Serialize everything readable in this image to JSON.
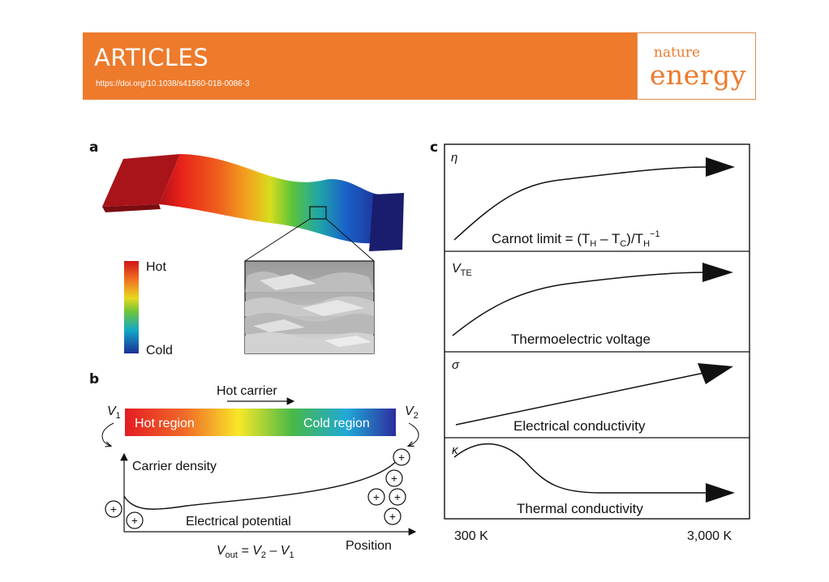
{
  "header": {
    "section": "ARTICLES",
    "doi": "https://doi.org/10.1038/s41560-018-0086-3",
    "journal_line1": "nature",
    "journal_line2": "energy",
    "accent_color": "#ee7a2c"
  },
  "panel_a": {
    "label": "a",
    "scale_hot": "Hot",
    "scale_cold": "Cold"
  },
  "panel_b": {
    "label": "b",
    "hot_carrier": "Hot carrier",
    "v1_main": "V",
    "v1_sub": "1",
    "v2_main": "V",
    "v2_sub": "2",
    "hot_region": "Hot region",
    "cold_region": "Cold region",
    "carrier_density": "Carrier density",
    "electrical_potential": "Electrical potential",
    "vout_main": "V",
    "vout_sub": "out",
    "vout_mid": " = V",
    "vout_sub2": "2",
    "vout_end": " – V",
    "vout_sub3": "1",
    "position": "Position",
    "plus": "+"
  },
  "panel_c": {
    "label": "c",
    "eta_symbol": "η",
    "carnot_prefix": "Carnot limit = (T",
    "carnot_sub_h": "H",
    "carnot_minus": " – T",
    "carnot_sub_c": "C",
    "carnot_mid": ")/T",
    "carnot_sub_h2": "H",
    "carnot_sup": "−1",
    "vte_main": "V",
    "vte_sub": "TE",
    "vte_label": "Thermoelectric voltage",
    "sigma_symbol": "σ",
    "sigma_label": "Electrical conductivity",
    "kappa_symbol": "κ",
    "kappa_label": "Thermal conductivity",
    "x_start": "300 K",
    "x_end": "3,000 K"
  }
}
